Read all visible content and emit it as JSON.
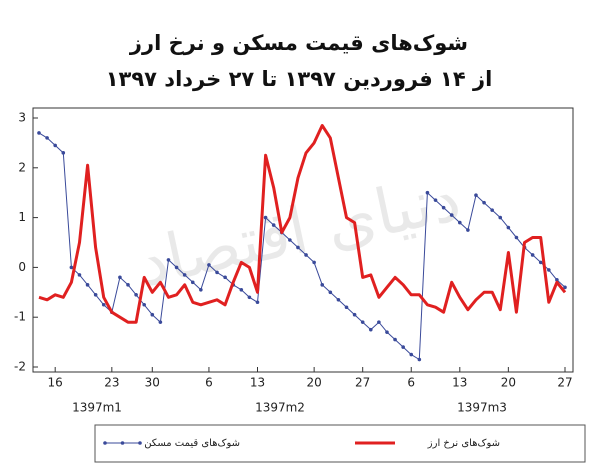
{
  "chart_data": {
    "type": "line",
    "title": "شوک‌های قیمت مسکن و نرخ ارز",
    "subtitle": "از ۱۴ فروردین ۱۳۹۷ تا ۲۷ خرداد ۱۳۹۷",
    "watermark": "دنیای اقتصاد",
    "categories": [
      null,
      null,
      "16",
      null,
      null,
      null,
      null,
      null,
      null,
      "23",
      null,
      null,
      null,
      null,
      "30",
      null,
      null,
      null,
      null,
      null,
      null,
      "6",
      null,
      null,
      null,
      null,
      null,
      "13",
      null,
      null,
      null,
      null,
      null,
      null,
      "20",
      null,
      null,
      null,
      null,
      null,
      "27",
      null,
      null,
      null,
      null,
      null,
      "6",
      null,
      null,
      null,
      null,
      null,
      "13",
      null,
      null,
      null,
      null,
      null,
      "20",
      null,
      null,
      null,
      null,
      null,
      null,
      "27"
    ],
    "groups": [
      "1397m1",
      "1397m2",
      "1397m3"
    ],
    "ylim": [
      -2,
      3
    ],
    "yticks": [
      -2,
      -1,
      0,
      1,
      2,
      3
    ],
    "series": [
      {
        "name": "شوک‌های قیمت مسکن",
        "color": "#3a4a9a",
        "markers": true,
        "values": [
          2.7,
          2.6,
          2.45,
          2.3,
          0.0,
          -0.15,
          -0.35,
          -0.55,
          -0.75,
          -0.9,
          -0.2,
          -0.35,
          -0.55,
          -0.75,
          -0.95,
          -1.1,
          0.15,
          0.0,
          -0.15,
          -0.3,
          -0.45,
          0.05,
          -0.1,
          -0.2,
          -0.35,
          -0.45,
          -0.6,
          -0.7,
          1.0,
          0.85,
          0.7,
          0.55,
          0.4,
          0.25,
          0.1,
          -0.35,
          -0.5,
          -0.65,
          -0.8,
          -0.95,
          -1.1,
          -1.25,
          -1.1,
          -1.3,
          -1.45,
          -1.6,
          -1.75,
          -1.85,
          1.5,
          1.35,
          1.2,
          1.05,
          0.9,
          0.75,
          1.45,
          1.3,
          1.15,
          1.0,
          0.8,
          0.6,
          0.4,
          0.25,
          0.1,
          -0.05,
          -0.25,
          -0.4
        ]
      },
      {
        "name": "شوک‌های نرخ ارز",
        "color": "#e02020",
        "markers": false,
        "values": [
          -0.6,
          -0.65,
          -0.55,
          -0.6,
          -0.3,
          0.5,
          2.05,
          0.4,
          -0.6,
          -0.9,
          -1.0,
          -1.1,
          -1.1,
          -0.2,
          -0.5,
          -0.3,
          -0.6,
          -0.55,
          -0.35,
          -0.7,
          -0.75,
          -0.7,
          -0.65,
          -0.75,
          -0.3,
          0.1,
          0.0,
          -0.5,
          2.25,
          1.6,
          0.7,
          1.0,
          1.8,
          2.3,
          2.5,
          2.85,
          2.6,
          1.8,
          1.0,
          0.9,
          -0.2,
          -0.15,
          -0.6,
          -0.4,
          -0.2,
          -0.35,
          -0.55,
          -0.55,
          -0.75,
          -0.8,
          -0.9,
          -0.3,
          -0.6,
          -0.85,
          -0.65,
          -0.5,
          -0.5,
          -0.85,
          0.3,
          -0.9,
          0.5,
          0.6,
          0.6,
          -0.7,
          -0.3,
          -0.5
        ]
      }
    ]
  }
}
